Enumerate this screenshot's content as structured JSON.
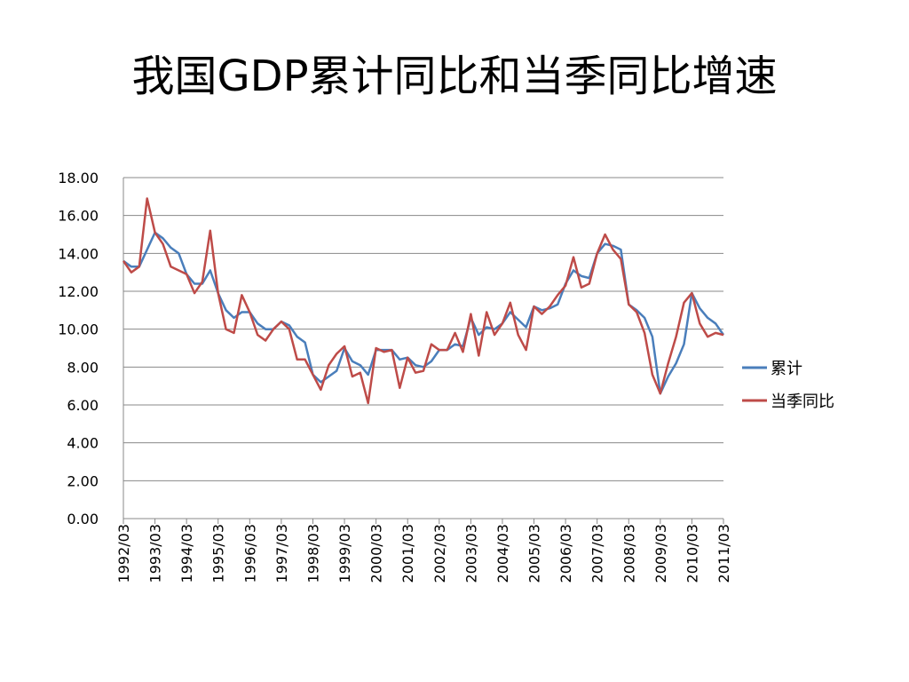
{
  "slide": {
    "title": "我国GDP累计同比和当季同比增速"
  },
  "chart_data": {
    "type": "line",
    "title": "我国GDP累计同比和当季同比增速",
    "xlabel": "",
    "ylabel": "",
    "ylim": [
      0,
      18
    ],
    "yticks": [
      "0.00",
      "2.00",
      "4.00",
      "6.00",
      "8.00",
      "10.00",
      "12.00",
      "14.00",
      "16.00",
      "18.00"
    ],
    "x_tick_labels": [
      "1992/03",
      "1993/03",
      "1994/03",
      "1995/03",
      "1996/03",
      "1997/03",
      "1998/03",
      "1999/03",
      "2000/03",
      "2001/03",
      "2002/03",
      "2003/03",
      "2004/03",
      "2005/03",
      "2006/03",
      "2007/03",
      "2008/03",
      "2009/03",
      "2010/03",
      "2011/03"
    ],
    "grid": true,
    "legend_position": "right",
    "x": [
      "1992/03",
      "1992/06",
      "1992/09",
      "1992/12",
      "1993/03",
      "1993/06",
      "1993/09",
      "1993/12",
      "1994/03",
      "1994/06",
      "1994/09",
      "1994/12",
      "1995/03",
      "1995/06",
      "1995/09",
      "1995/12",
      "1996/03",
      "1996/06",
      "1996/09",
      "1996/12",
      "1997/03",
      "1997/06",
      "1997/09",
      "1997/12",
      "1998/03",
      "1998/06",
      "1998/09",
      "1998/12",
      "1999/03",
      "1999/06",
      "1999/09",
      "1999/12",
      "2000/03",
      "2000/06",
      "2000/09",
      "2000/12",
      "2001/03",
      "2001/06",
      "2001/09",
      "2001/12",
      "2002/03",
      "2002/06",
      "2002/09",
      "2002/12",
      "2003/03",
      "2003/06",
      "2003/09",
      "2003/12",
      "2004/03",
      "2004/06",
      "2004/09",
      "2004/12",
      "2005/03",
      "2005/06",
      "2005/09",
      "2005/12",
      "2006/03",
      "2006/06",
      "2006/09",
      "2006/12",
      "2007/03",
      "2007/06",
      "2007/09",
      "2007/12",
      "2008/03",
      "2008/06",
      "2008/09",
      "2008/12",
      "2009/03",
      "2009/06",
      "2009/09",
      "2009/12",
      "2010/03",
      "2010/06",
      "2010/09",
      "2010/12",
      "2011/03"
    ],
    "series": [
      {
        "name": "累计",
        "color": "#4a7ebb",
        "values": [
          13.6,
          13.3,
          13.3,
          14.2,
          15.1,
          14.8,
          14.3,
          14.0,
          12.9,
          12.4,
          12.4,
          13.1,
          11.9,
          11.0,
          10.6,
          10.9,
          10.9,
          10.3,
          10.0,
          10.0,
          10.4,
          10.2,
          9.6,
          9.3,
          7.6,
          7.2,
          7.5,
          7.8,
          9.0,
          8.3,
          8.1,
          7.6,
          8.9,
          8.9,
          8.9,
          8.4,
          8.5,
          8.1,
          8.0,
          8.3,
          8.9,
          8.9,
          9.2,
          9.1,
          10.6,
          9.7,
          10.1,
          10.0,
          10.3,
          10.9,
          10.5,
          10.1,
          11.2,
          11.0,
          11.1,
          11.3,
          12.4,
          13.1,
          12.8,
          12.7,
          14.0,
          14.5,
          14.4,
          14.2,
          11.3,
          11.0,
          10.6,
          9.6,
          6.6,
          7.5,
          8.2,
          9.2,
          11.9,
          11.1,
          10.6,
          10.3,
          9.7
        ]
      },
      {
        "name": "当季同比",
        "color": "#be4b48",
        "values": [
          13.6,
          13.0,
          13.3,
          16.9,
          15.1,
          14.5,
          13.3,
          13.1,
          12.9,
          11.9,
          12.5,
          15.2,
          11.9,
          10.0,
          9.8,
          11.8,
          10.9,
          9.7,
          9.4,
          10.0,
          10.4,
          10.0,
          8.4,
          8.4,
          7.6,
          6.8,
          8.1,
          8.7,
          9.1,
          7.5,
          7.7,
          6.1,
          9.0,
          8.8,
          8.9,
          6.9,
          8.5,
          7.7,
          7.8,
          9.2,
          8.9,
          8.9,
          9.8,
          8.8,
          10.8,
          8.6,
          10.9,
          9.7,
          10.3,
          11.4,
          9.7,
          8.9,
          11.2,
          10.8,
          11.2,
          11.8,
          12.3,
          13.8,
          12.2,
          12.4,
          14.0,
          15.0,
          14.2,
          13.7,
          11.3,
          10.9,
          9.8,
          7.6,
          6.6,
          8.2,
          9.6,
          11.4,
          11.9,
          10.3,
          9.6,
          9.8,
          9.7
        ]
      }
    ]
  }
}
